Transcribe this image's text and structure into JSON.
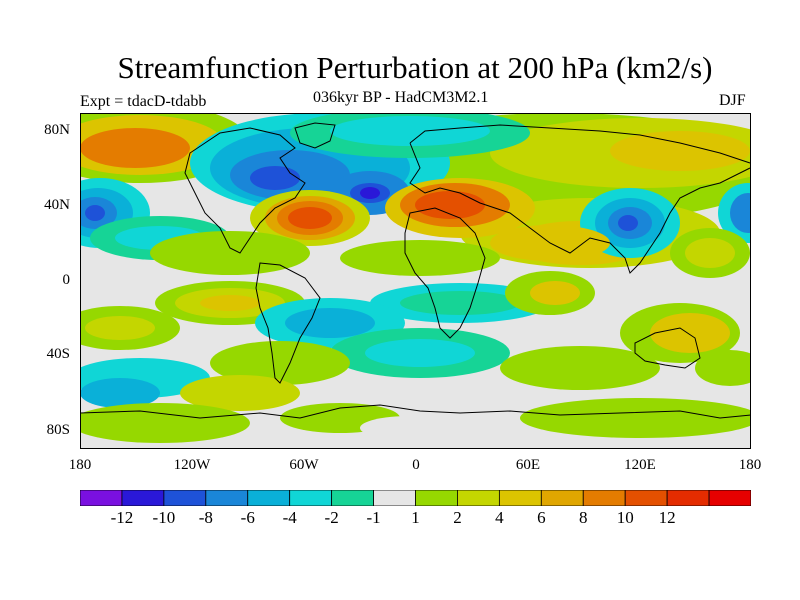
{
  "title": "Streamfunction Perturbation at 200 hPa (km2/s)",
  "subtitle": "036kyr BP - HadCM3M2.1",
  "experiment": "Expt = tdacD-tdabb",
  "season": "DJF",
  "map": {
    "lat_labels": [
      "80N",
      "40N",
      "0",
      "40S",
      "80S"
    ],
    "lon_labels": [
      "180",
      "120W",
      "60W",
      "0",
      "60E",
      "120E",
      "180"
    ]
  },
  "colorbar": {
    "colors": [
      "#7a10e0",
      "#2a18d8",
      "#1e52d8",
      "#1a86d8",
      "#0ab0d8",
      "#10d6d6",
      "#16d496",
      "#e6e6e6",
      "#96d800",
      "#c4d600",
      "#dcc400",
      "#e0a600",
      "#e47c00",
      "#e45000",
      "#e42c00",
      "#e60000"
    ],
    "labels": [
      "-12",
      "-10",
      "-8",
      "-6",
      "-4",
      "-2",
      "-1",
      "1",
      "2",
      "4",
      "6",
      "8",
      "10",
      "12"
    ]
  }
}
